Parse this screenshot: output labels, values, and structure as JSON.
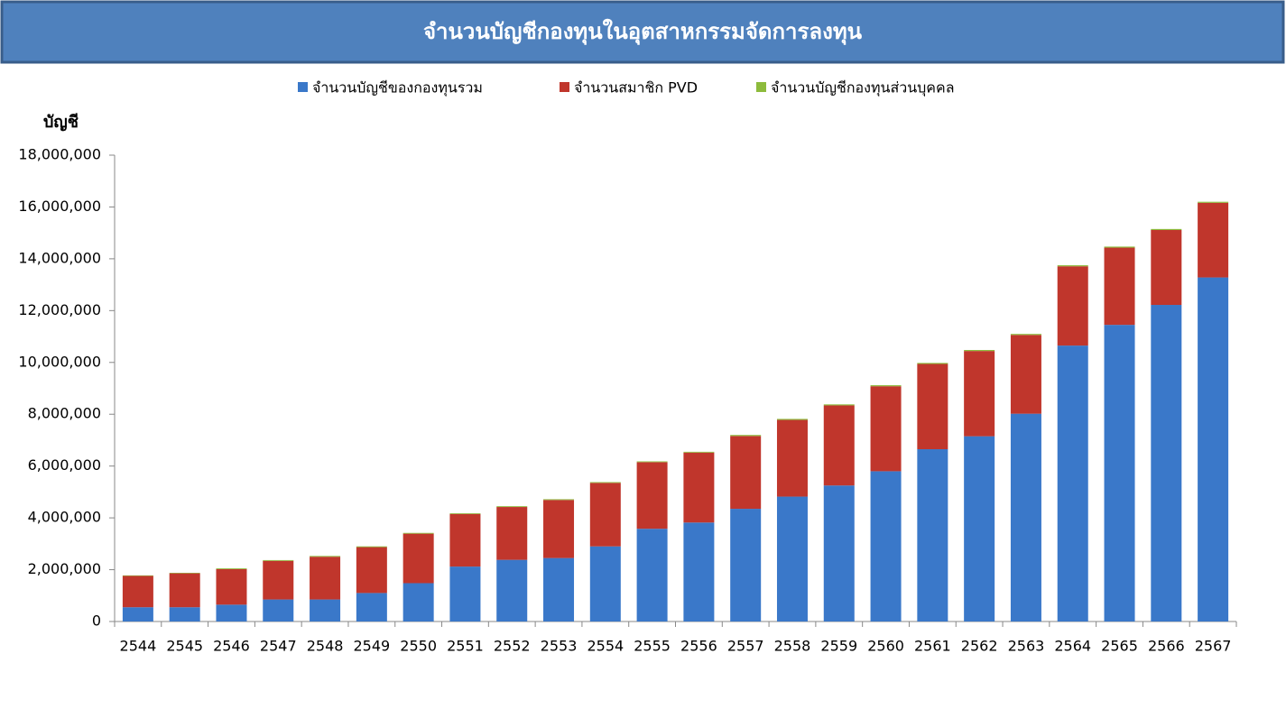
{
  "chart_data": {
    "type": "stacked_bar",
    "title": "จำนวนบัญชีกองทุนในอุตสาหกรรมจัดการลงทุน",
    "y_label": "บัญชี",
    "categories": [
      "2544",
      "2545",
      "2546",
      "2547",
      "2548",
      "2549",
      "2550",
      "2551",
      "2552",
      "2553",
      "2554",
      "2555",
      "2556",
      "2557",
      "2558",
      "2559",
      "2560",
      "2561",
      "2562",
      "2563",
      "2564",
      "2565",
      "2566",
      "2567"
    ],
    "series": [
      {
        "name": "จำนวนบัญชีของกองทุนรวม",
        "color": "#3a78c9",
        "values": [
          550000,
          550000,
          650000,
          850000,
          850000,
          1100000,
          1480000,
          2120000,
          2380000,
          2450000,
          2900000,
          3580000,
          3820000,
          4350000,
          4820000,
          5250000,
          5800000,
          6650000,
          7150000,
          8020000,
          10650000,
          11450000,
          12220000,
          13280000
        ]
      },
      {
        "name": "จำนวนสมาชิก PVD",
        "color": "#c0362c",
        "values": [
          1210000,
          1310000,
          1370000,
          1490000,
          1650000,
          1770000,
          1910000,
          2030000,
          2040000,
          2240000,
          2450000,
          2570000,
          2700000,
          2810000,
          2960000,
          3090000,
          3280000,
          3290000,
          3290000,
          3040000,
          3060000,
          2980000,
          2890000,
          2880000
        ]
      },
      {
        "name": "จำนวนบัญชีกองทุนส่วนบุคคล",
        "color": "#8dbb3c",
        "values": [
          20000,
          20000,
          30000,
          30000,
          30000,
          30000,
          30000,
          30000,
          30000,
          30000,
          30000,
          30000,
          30000,
          40000,
          40000,
          40000,
          40000,
          40000,
          40000,
          40000,
          40000,
          40000,
          40000,
          40000
        ]
      }
    ],
    "ylim": [
      0,
      18000000
    ],
    "yticks": [
      0,
      {
        "value": 2000000,
        "label": "2,000,000"
      },
      {
        "value": 4000000,
        "label": "4,000,000"
      },
      {
        "value": 6000000,
        "label": "6,000,000"
      },
      {
        "value": 8000000,
        "label": "8,000,000"
      },
      {
        "value": 10000000,
        "label": "10,000,000"
      },
      {
        "value": 12000000,
        "label": "12,000,000"
      },
      {
        "value": 14000000,
        "label": "14,000,000"
      },
      {
        "value": 16000000,
        "label": "16,000,000"
      },
      {
        "value": 18000000,
        "label": "18,000,000"
      }
    ],
    "grid": false
  }
}
